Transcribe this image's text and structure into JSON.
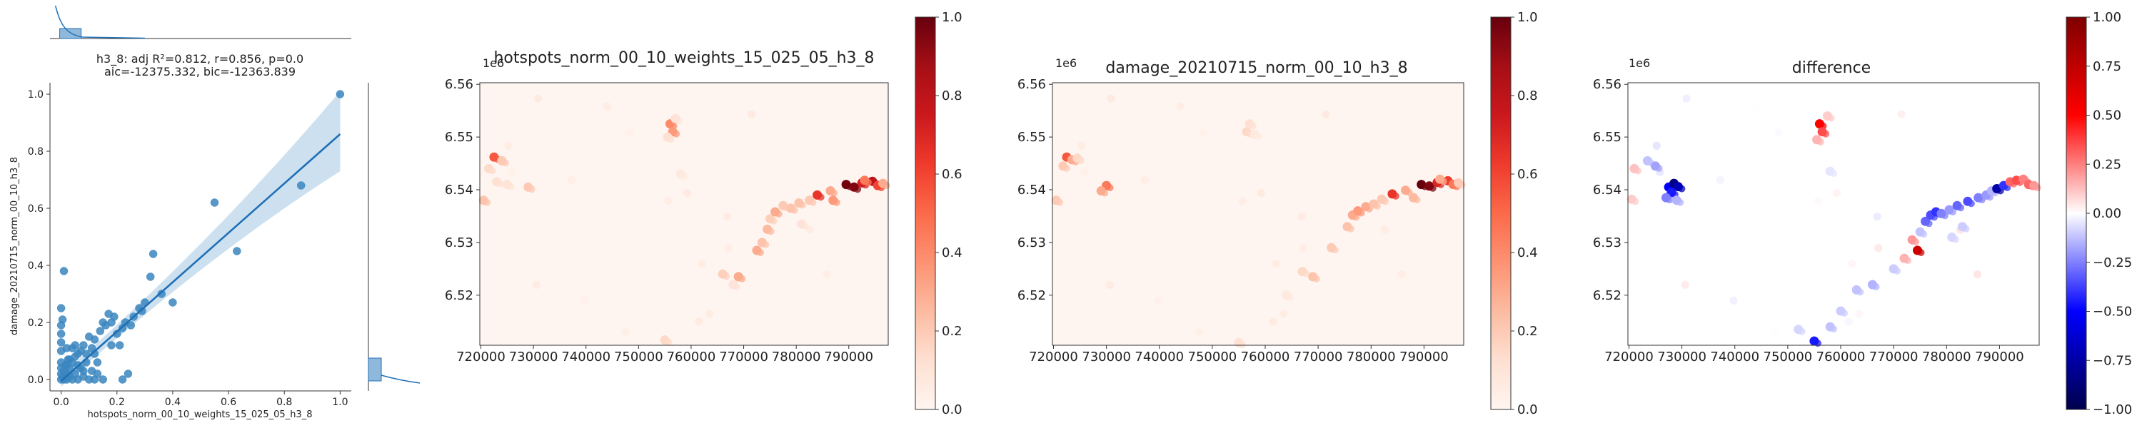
{
  "colors": {
    "scatter": "#3a86c0",
    "regression_line": "#1f6fb5",
    "ci_band": "#aacbe6",
    "grid_bg": "#ffffff",
    "reds_low": "#fff5f0",
    "reds_high": "#67000d",
    "seismic_low": "#00004c",
    "seismic_mid": "#ffffff",
    "seismic_high": "#7f0000"
  },
  "chart_data": [
    {
      "type": "scatter",
      "id": "regression",
      "title_line1": "h3_8: adj R²=0.812, r=0.856, p=0.0",
      "title_line2": "aic=-12375.332, bic=-12363.839",
      "xlabel": "hotspots_norm_00_10_weights_15_025_05_h3_8",
      "ylabel": "damage_20210715_norm_00_10_h3_8",
      "xlim": [
        -0.04,
        1.04
      ],
      "ylim": [
        -0.04,
        1.04
      ],
      "xticks": [
        "0.0",
        "0.2",
        "0.4",
        "0.6",
        "0.8",
        "1.0"
      ],
      "yticks": [
        "0.0",
        "0.2",
        "0.4",
        "0.6",
        "0.8",
        "1.0"
      ],
      "regression": {
        "intercept": -0.005,
        "slope": 0.865
      },
      "points": [
        [
          0.0,
          0.0
        ],
        [
          0.0,
          0.02
        ],
        [
          0.0,
          0.04
        ],
        [
          0.0,
          0.06
        ],
        [
          0.005,
          0.01
        ],
        [
          0.01,
          0.03
        ],
        [
          0.01,
          0.0
        ],
        [
          0.015,
          0.05
        ],
        [
          0.02,
          0.02
        ],
        [
          0.02,
          0.0
        ],
        [
          0.025,
          0.07
        ],
        [
          0.03,
          0.01
        ],
        [
          0.03,
          0.04
        ],
        [
          0.04,
          0.0
        ],
        [
          0.04,
          0.06
        ],
        [
          0.05,
          0.02
        ],
        [
          0.05,
          0.08
        ],
        [
          0.06,
          0.0
        ],
        [
          0.07,
          0.04
        ],
        [
          0.08,
          0.01
        ],
        [
          0.09,
          0.06
        ],
        [
          0.1,
          0.0
        ],
        [
          0.11,
          0.03
        ],
        [
          0.12,
          0.0
        ],
        [
          0.02,
          0.05
        ],
        [
          0.03,
          0.07
        ],
        [
          0.06,
          0.05
        ],
        [
          0.08,
          0.03
        ],
        [
          0.13,
          0.02
        ],
        [
          0.15,
          0.0
        ],
        [
          0.0,
          0.1
        ],
        [
          0.0,
          0.13
        ],
        [
          0.0,
          0.16
        ],
        [
          0.005,
          0.21
        ],
        [
          0.0,
          0.25
        ],
        [
          0.01,
          0.38
        ],
        [
          0.04,
          0.11
        ],
        [
          0.05,
          0.12
        ],
        [
          0.07,
          0.1
        ],
        [
          0.08,
          0.12
        ],
        [
          0.1,
          0.15
        ],
        [
          0.11,
          0.11
        ],
        [
          0.12,
          0.14
        ],
        [
          0.14,
          0.17
        ],
        [
          0.15,
          0.2
        ],
        [
          0.16,
          0.19
        ],
        [
          0.17,
          0.23
        ],
        [
          0.18,
          0.2
        ],
        [
          0.19,
          0.22
        ],
        [
          0.2,
          0.16
        ],
        [
          0.21,
          0.12
        ],
        [
          0.22,
          0.18
        ],
        [
          0.23,
          0.2
        ],
        [
          0.25,
          0.19
        ],
        [
          0.26,
          0.22
        ],
        [
          0.22,
          0.0
        ],
        [
          0.24,
          0.02
        ],
        [
          0.28,
          0.25
        ],
        [
          0.29,
          0.24
        ],
        [
          0.3,
          0.27
        ],
        [
          0.32,
          0.36
        ],
        [
          0.33,
          0.44
        ],
        [
          0.36,
          0.3
        ],
        [
          0.4,
          0.27
        ],
        [
          0.55,
          0.62
        ],
        [
          0.63,
          0.45
        ],
        [
          0.86,
          0.68
        ],
        [
          1.0,
          1.0
        ],
        [
          0.12,
          0.09
        ],
        [
          0.09,
          0.09
        ],
        [
          0.18,
          0.12
        ],
        [
          0.13,
          0.06
        ],
        [
          0.06,
          0.09
        ],
        [
          0.02,
          0.11
        ],
        [
          0.0,
          0.19
        ]
      ]
    },
    {
      "type": "heatmap",
      "id": "hotspots",
      "title": "hotspots_norm_00_10_weights_15_025_05_h3_8",
      "offset_label": "1e6",
      "colormap": "Reds",
      "xlim": [
        719800,
        797500
      ],
      "ylim": [
        6510500,
        6560300
      ],
      "xticks": [
        720000,
        730000,
        740000,
        750000,
        760000,
        770000,
        780000,
        790000
      ],
      "yticks": [
        6.52,
        6.53,
        6.54,
        6.55,
        6.56
      ],
      "colorbar_ticks": [
        "0.0",
        "0.2",
        "0.4",
        "0.6",
        "0.8",
        "1.0"
      ],
      "clim": [
        0,
        1
      ],
      "points": [
        [
          722500,
          6546200,
          0.55
        ],
        [
          721500,
          6544000,
          0.14
        ],
        [
          724000,
          6545500,
          0.2
        ],
        [
          720500,
          6538000,
          0.22
        ],
        [
          723000,
          6541500,
          0.12
        ],
        [
          729000,
          6540500,
          0.2
        ],
        [
          725000,
          6541000,
          0.1
        ],
        [
          756000,
          6552500,
          0.4
        ],
        [
          756500,
          6551000,
          0.35
        ],
        [
          755500,
          6550000,
          0.12
        ],
        [
          757000,
          6553500,
          0.1
        ],
        [
          755000,
          6511500,
          0.15
        ],
        [
          769000,
          6523500,
          0.3
        ],
        [
          766000,
          6524000,
          0.18
        ],
        [
          772500,
          6528500,
          0.3
        ],
        [
          773500,
          6530000,
          0.22
        ],
        [
          774500,
          6532500,
          0.25
        ],
        [
          775000,
          6534500,
          0.18
        ],
        [
          776000,
          6535800,
          0.3
        ],
        [
          777500,
          6537000,
          0.2
        ],
        [
          779000,
          6536500,
          0.22
        ],
        [
          780500,
          6537500,
          0.22
        ],
        [
          782500,
          6538000,
          0.2
        ],
        [
          784000,
          6539000,
          0.65
        ],
        [
          786500,
          6539800,
          0.3
        ],
        [
          787000,
          6538000,
          0.35
        ],
        [
          789500,
          6541000,
          0.98
        ],
        [
          791000,
          6540500,
          0.95
        ],
        [
          792500,
          6541300,
          0.72
        ],
        [
          794500,
          6541600,
          0.8
        ],
        [
          795500,
          6540800,
          0.6
        ],
        [
          793000,
          6541800,
          0.45
        ],
        [
          796500,
          6541200,
          0.3
        ],
        [
          781000,
          6533500,
          0.1
        ],
        [
          768000,
          6522000,
          0.1
        ],
        [
          758000,
          6543000,
          0.07
        ]
      ]
    },
    {
      "type": "heatmap",
      "id": "damage",
      "title": "damage_20210715_norm_00_10_h3_8",
      "offset_label": "1e6",
      "colormap": "Reds",
      "xlim": [
        719800,
        797500
      ],
      "ylim": [
        6510500,
        6560300
      ],
      "xticks": [
        720000,
        730000,
        740000,
        750000,
        760000,
        770000,
        780000,
        790000
      ],
      "yticks": [
        6.52,
        6.53,
        6.54,
        6.55,
        6.56
      ],
      "colorbar_ticks": [
        "0.0",
        "0.2",
        "0.4",
        "0.6",
        "0.8",
        "1.0"
      ],
      "clim": [
        0,
        1
      ],
      "points": [
        [
          722500,
          6546200,
          0.55
        ],
        [
          723500,
          6545700,
          0.3
        ],
        [
          721800,
          6544500,
          0.2
        ],
        [
          724500,
          6546000,
          0.15
        ],
        [
          720500,
          6538000,
          0.2
        ],
        [
          730000,
          6540800,
          0.45
        ],
        [
          729000,
          6539800,
          0.3
        ],
        [
          756500,
          6551000,
          0.15
        ],
        [
          757000,
          6552500,
          0.12
        ],
        [
          755000,
          6511000,
          0.12
        ],
        [
          769000,
          6523500,
          0.22
        ],
        [
          767000,
          6524500,
          0.15
        ],
        [
          772500,
          6529000,
          0.2
        ],
        [
          775500,
          6533000,
          0.22
        ],
        [
          776500,
          6535200,
          0.3
        ],
        [
          777500,
          6536000,
          0.35
        ],
        [
          779000,
          6536800,
          0.3
        ],
        [
          780500,
          6537300,
          0.22
        ],
        [
          782000,
          6538200,
          0.2
        ],
        [
          784000,
          6539200,
          0.65
        ],
        [
          786500,
          6539900,
          0.3
        ],
        [
          788000,
          6538500,
          0.25
        ],
        [
          789500,
          6541000,
          1.0
        ],
        [
          791000,
          6540700,
          0.95
        ],
        [
          792500,
          6541400,
          0.7
        ],
        [
          794500,
          6541700,
          0.62
        ],
        [
          795500,
          6541000,
          0.45
        ],
        [
          793000,
          6542000,
          0.3
        ],
        [
          796500,
          6541300,
          0.2
        ],
        [
          758000,
          6550500,
          0.07
        ],
        [
          764000,
          6520000,
          0.07
        ]
      ]
    },
    {
      "type": "heatmap",
      "id": "difference",
      "title": "difference",
      "offset_label": "1e6",
      "colormap": "seismic",
      "xlim": [
        719800,
        797500
      ],
      "ylim": [
        6510500,
        6560300
      ],
      "xticks": [
        720000,
        730000,
        740000,
        750000,
        760000,
        770000,
        780000,
        790000
      ],
      "yticks": [
        6.52,
        6.53,
        6.54,
        6.55,
        6.56
      ],
      "colorbar_ticks": [
        "1.00",
        "0.75",
        "0.50",
        "0.25",
        "0.00",
        "−0.25",
        "−0.50",
        "−0.75",
        "−1.00"
      ],
      "clim": [
        -1,
        1
      ],
      "points": [
        [
          722500,
          6546200,
          0.0
        ],
        [
          721000,
          6544000,
          0.12
        ],
        [
          723500,
          6545500,
          -0.12
        ],
        [
          725000,
          6544500,
          -0.18
        ],
        [
          720500,
          6538200,
          0.1
        ],
        [
          727500,
          6540500,
          -0.5
        ],
        [
          728500,
          6541200,
          -0.85
        ],
        [
          729300,
          6540600,
          -0.7
        ],
        [
          728000,
          6539500,
          -0.45
        ],
        [
          727000,
          6538500,
          -0.25
        ],
        [
          729000,
          6538000,
          -0.15
        ],
        [
          756000,
          6552500,
          0.5
        ],
        [
          756500,
          6551000,
          0.35
        ],
        [
          755500,
          6549500,
          0.15
        ],
        [
          757500,
          6554000,
          0.1
        ],
        [
          755000,
          6511300,
          -0.45
        ],
        [
          774500,
          6528500,
          0.7
        ],
        [
          772000,
          6527000,
          0.15
        ],
        [
          773500,
          6530500,
          0.2
        ],
        [
          775000,
          6532000,
          -0.12
        ],
        [
          776000,
          6534000,
          -0.3
        ],
        [
          777000,
          6535200,
          -0.35
        ],
        [
          778000,
          6535800,
          -0.4
        ],
        [
          779000,
          6535500,
          -0.25
        ],
        [
          780500,
          6536200,
          -0.2
        ],
        [
          782000,
          6537000,
          -0.3
        ],
        [
          784000,
          6537800,
          -0.35
        ],
        [
          786000,
          6538500,
          -0.25
        ],
        [
          787500,
          6539000,
          -0.2
        ],
        [
          788500,
          6539800,
          -0.15
        ],
        [
          789500,
          6540200,
          -0.75
        ],
        [
          790800,
          6540800,
          -0.4
        ],
        [
          792000,
          6541500,
          0.3
        ],
        [
          793200,
          6541800,
          0.35
        ],
        [
          794500,
          6542000,
          0.25
        ],
        [
          795500,
          6541000,
          0.3
        ],
        [
          796500,
          6540800,
          0.2
        ],
        [
          770000,
          6525000,
          -0.1
        ],
        [
          766000,
          6522000,
          -0.15
        ],
        [
          763000,
          6521000,
          -0.12
        ],
        [
          760000,
          6517000,
          -0.1
        ],
        [
          758000,
          6514000,
          -0.12
        ],
        [
          752000,
          6513500,
          -0.08
        ],
        [
          781000,
          6531000,
          -0.08
        ],
        [
          783000,
          6533000,
          -0.1
        ],
        [
          758000,
          6543500,
          -0.05
        ]
      ]
    }
  ]
}
